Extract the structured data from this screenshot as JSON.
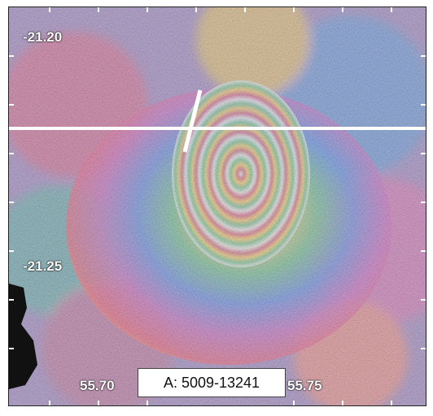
{
  "map": {
    "lat_labels": [
      "-21.20",
      "-21.25"
    ],
    "lon_labels": [
      "55.70",
      "55.75"
    ],
    "caption": "A: 5009-13241"
  }
}
